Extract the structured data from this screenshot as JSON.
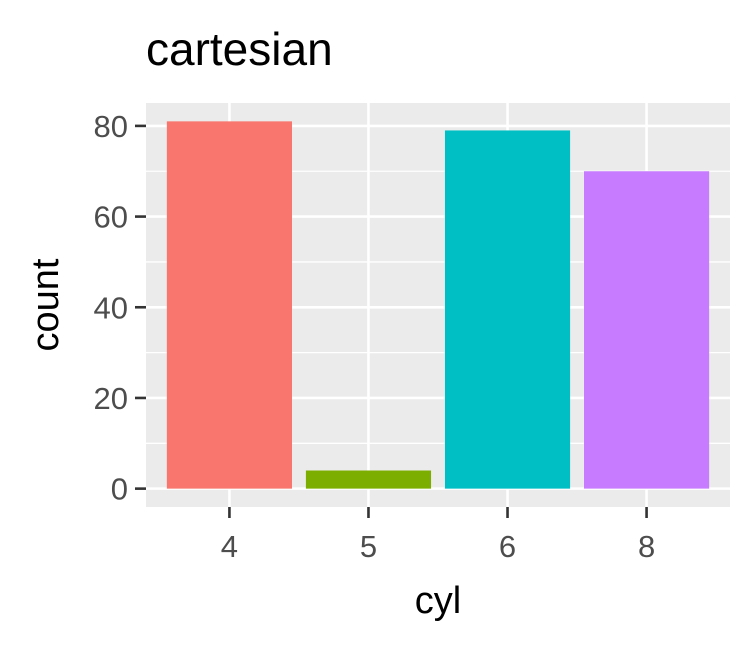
{
  "chart_data": {
    "type": "bar",
    "title": "cartesian",
    "xlabel": "cyl",
    "ylabel": "count",
    "categories": [
      "4",
      "5",
      "6",
      "8"
    ],
    "values": [
      81,
      4,
      79,
      70
    ],
    "colors": [
      "#F8766D",
      "#7CAE00",
      "#00BFC4",
      "#C77CFF"
    ],
    "ylim": [
      -4.05,
      85.05
    ],
    "yticks": [
      0,
      20,
      40,
      60,
      80
    ],
    "ytick_labels": [
      "0",
      "20",
      "40",
      "60",
      "80"
    ],
    "grid": true,
    "panel_background": "#EBEBEB",
    "grid_color": "#FFFFFF"
  }
}
